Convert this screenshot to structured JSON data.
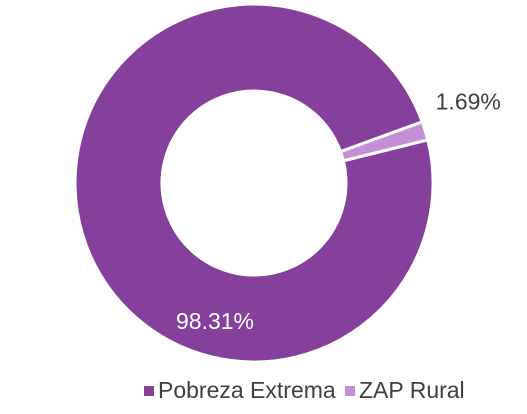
{
  "chart_data": {
    "type": "donut",
    "categories": [
      "Pobreza Extrema",
      "ZAP Rural"
    ],
    "values": [
      98.31,
      1.69
    ],
    "value_labels": [
      "98.31%",
      "1.69%"
    ],
    "colors": [
      "#84409a",
      "#c48fd6"
    ],
    "legend": "bottom"
  }
}
